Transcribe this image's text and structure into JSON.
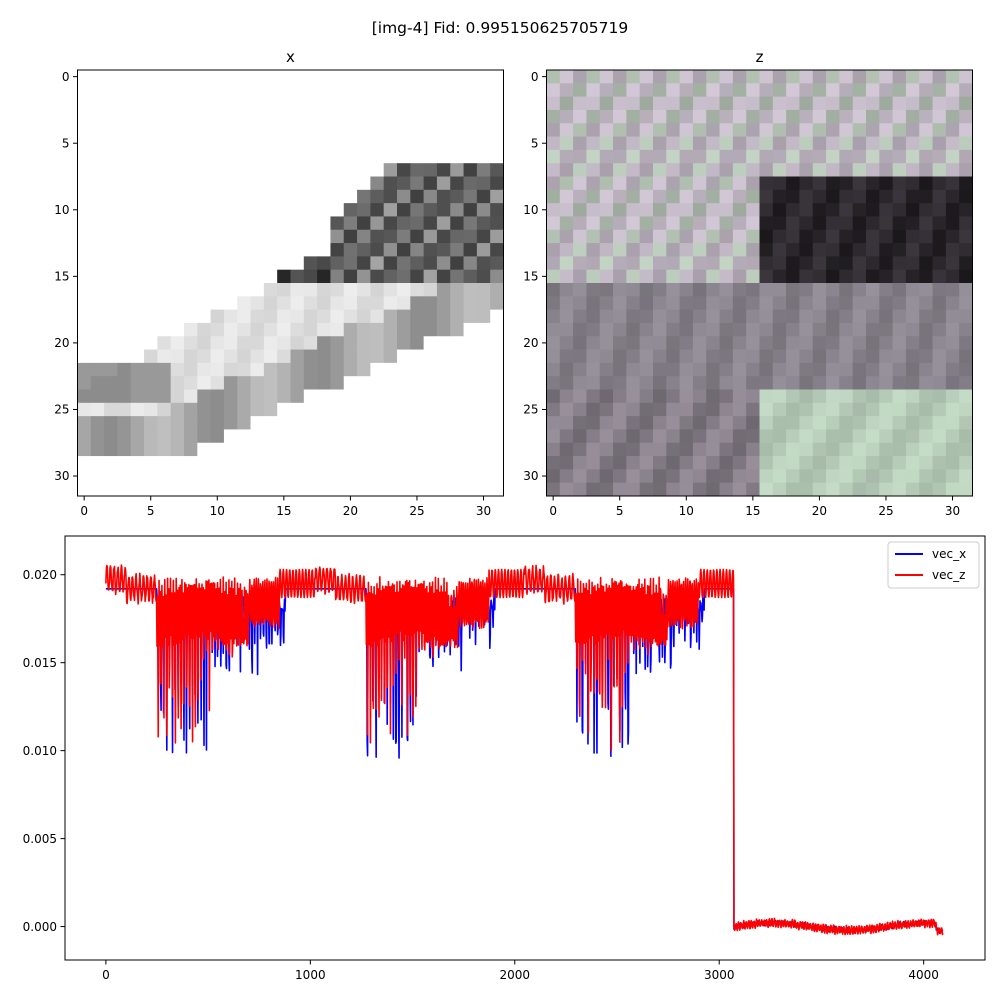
{
  "figure": {
    "suptitle": "[img-4] Fid: 0.995150625705719"
  },
  "chart_data": [
    {
      "type": "heatmap",
      "title": "x",
      "colormap": "gray_r",
      "shape": [
        32,
        32
      ],
      "xticks": [
        "0",
        "5",
        "10",
        "15",
        "20",
        "25",
        "30"
      ],
      "yticks": [
        "0",
        "5",
        "10",
        "15",
        "20",
        "25",
        "30"
      ],
      "content": "grayscale 32x32 image of a sneaker",
      "colors": {
        "light": "#ffffff",
        "dark": "#000000"
      }
    },
    {
      "type": "heatmap",
      "title": "z",
      "shape": [
        32,
        32
      ],
      "xticks": [
        "0",
        "5",
        "10",
        "15",
        "20",
        "25",
        "30"
      ],
      "yticks": [
        "0",
        "5",
        "10",
        "15",
        "20",
        "25",
        "30"
      ],
      "content": "blocky 32x32 color pattern in gray, purple and green tints",
      "colors": {
        "light_green": "#c8dcc8",
        "mid_gray": "#8a8290",
        "dark": "#201a24",
        "light_purple": "#dcd2e0"
      }
    },
    {
      "type": "line",
      "title": "",
      "xlabel": "",
      "ylabel": "",
      "xlim": [
        -200,
        4300
      ],
      "ylim": [
        -0.0019,
        0.0222
      ],
      "xticks": [
        "0",
        "1000",
        "2000",
        "3000",
        "4000"
      ],
      "yticks": [
        "0.000",
        "0.005",
        "0.010",
        "0.015",
        "0.020"
      ],
      "legend_position": "top-right",
      "series": [
        {
          "name": "vec_x",
          "color": "#0000ff",
          "description": "around 0.019 with three periodic dip segments down to ~0.0095, then drops to ~0.0000 after x=3072"
        },
        {
          "name": "vec_z",
          "color": "#ff0000",
          "description": "around 0.019-0.0205 with three dip segments down to ~0.013, drops to ~0.0000 with small oscillations after x=3072"
        }
      ]
    }
  ]
}
